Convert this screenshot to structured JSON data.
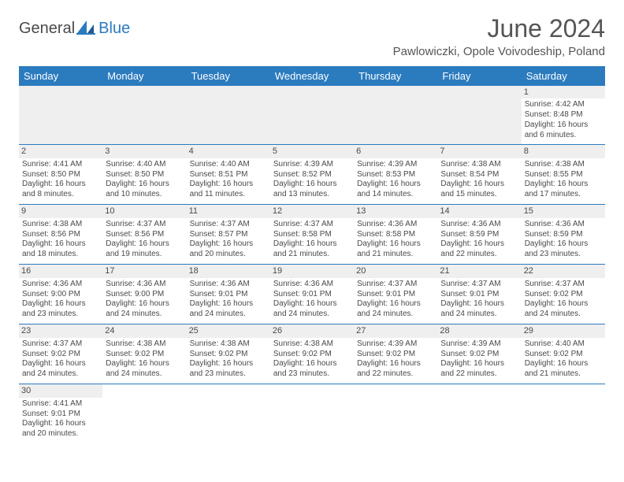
{
  "logo": {
    "part1": "General",
    "part2": "Blue"
  },
  "title": "June 2024",
  "location": "Pawlowiczki, Opole Voivodeship, Poland",
  "colors": {
    "header_bg": "#2b7bbf",
    "header_fg": "#ffffff",
    "daystrip": "#efefef",
    "text": "#4a4a4a",
    "rule": "#2b7bbf"
  },
  "weekdays": [
    "Sunday",
    "Monday",
    "Tuesday",
    "Wednesday",
    "Thursday",
    "Friday",
    "Saturday"
  ],
  "weeks": [
    [
      null,
      null,
      null,
      null,
      null,
      null,
      {
        "d": "1",
        "sr": "Sunrise: 4:42 AM",
        "ss": "Sunset: 8:48 PM",
        "dl": "Daylight: 16 hours and 6 minutes."
      }
    ],
    [
      {
        "d": "2",
        "sr": "Sunrise: 4:41 AM",
        "ss": "Sunset: 8:50 PM",
        "dl": "Daylight: 16 hours and 8 minutes."
      },
      {
        "d": "3",
        "sr": "Sunrise: 4:40 AM",
        "ss": "Sunset: 8:50 PM",
        "dl": "Daylight: 16 hours and 10 minutes."
      },
      {
        "d": "4",
        "sr": "Sunrise: 4:40 AM",
        "ss": "Sunset: 8:51 PM",
        "dl": "Daylight: 16 hours and 11 minutes."
      },
      {
        "d": "5",
        "sr": "Sunrise: 4:39 AM",
        "ss": "Sunset: 8:52 PM",
        "dl": "Daylight: 16 hours and 13 minutes."
      },
      {
        "d": "6",
        "sr": "Sunrise: 4:39 AM",
        "ss": "Sunset: 8:53 PM",
        "dl": "Daylight: 16 hours and 14 minutes."
      },
      {
        "d": "7",
        "sr": "Sunrise: 4:38 AM",
        "ss": "Sunset: 8:54 PM",
        "dl": "Daylight: 16 hours and 15 minutes."
      },
      {
        "d": "8",
        "sr": "Sunrise: 4:38 AM",
        "ss": "Sunset: 8:55 PM",
        "dl": "Daylight: 16 hours and 17 minutes."
      }
    ],
    [
      {
        "d": "9",
        "sr": "Sunrise: 4:38 AM",
        "ss": "Sunset: 8:56 PM",
        "dl": "Daylight: 16 hours and 18 minutes."
      },
      {
        "d": "10",
        "sr": "Sunrise: 4:37 AM",
        "ss": "Sunset: 8:56 PM",
        "dl": "Daylight: 16 hours and 19 minutes."
      },
      {
        "d": "11",
        "sr": "Sunrise: 4:37 AM",
        "ss": "Sunset: 8:57 PM",
        "dl": "Daylight: 16 hours and 20 minutes."
      },
      {
        "d": "12",
        "sr": "Sunrise: 4:37 AM",
        "ss": "Sunset: 8:58 PM",
        "dl": "Daylight: 16 hours and 21 minutes."
      },
      {
        "d": "13",
        "sr": "Sunrise: 4:36 AM",
        "ss": "Sunset: 8:58 PM",
        "dl": "Daylight: 16 hours and 21 minutes."
      },
      {
        "d": "14",
        "sr": "Sunrise: 4:36 AM",
        "ss": "Sunset: 8:59 PM",
        "dl": "Daylight: 16 hours and 22 minutes."
      },
      {
        "d": "15",
        "sr": "Sunrise: 4:36 AM",
        "ss": "Sunset: 8:59 PM",
        "dl": "Daylight: 16 hours and 23 minutes."
      }
    ],
    [
      {
        "d": "16",
        "sr": "Sunrise: 4:36 AM",
        "ss": "Sunset: 9:00 PM",
        "dl": "Daylight: 16 hours and 23 minutes."
      },
      {
        "d": "17",
        "sr": "Sunrise: 4:36 AM",
        "ss": "Sunset: 9:00 PM",
        "dl": "Daylight: 16 hours and 24 minutes."
      },
      {
        "d": "18",
        "sr": "Sunrise: 4:36 AM",
        "ss": "Sunset: 9:01 PM",
        "dl": "Daylight: 16 hours and 24 minutes."
      },
      {
        "d": "19",
        "sr": "Sunrise: 4:36 AM",
        "ss": "Sunset: 9:01 PM",
        "dl": "Daylight: 16 hours and 24 minutes."
      },
      {
        "d": "20",
        "sr": "Sunrise: 4:37 AM",
        "ss": "Sunset: 9:01 PM",
        "dl": "Daylight: 16 hours and 24 minutes."
      },
      {
        "d": "21",
        "sr": "Sunrise: 4:37 AM",
        "ss": "Sunset: 9:01 PM",
        "dl": "Daylight: 16 hours and 24 minutes."
      },
      {
        "d": "22",
        "sr": "Sunrise: 4:37 AM",
        "ss": "Sunset: 9:02 PM",
        "dl": "Daylight: 16 hours and 24 minutes."
      }
    ],
    [
      {
        "d": "23",
        "sr": "Sunrise: 4:37 AM",
        "ss": "Sunset: 9:02 PM",
        "dl": "Daylight: 16 hours and 24 minutes."
      },
      {
        "d": "24",
        "sr": "Sunrise: 4:38 AM",
        "ss": "Sunset: 9:02 PM",
        "dl": "Daylight: 16 hours and 24 minutes."
      },
      {
        "d": "25",
        "sr": "Sunrise: 4:38 AM",
        "ss": "Sunset: 9:02 PM",
        "dl": "Daylight: 16 hours and 23 minutes."
      },
      {
        "d": "26",
        "sr": "Sunrise: 4:38 AM",
        "ss": "Sunset: 9:02 PM",
        "dl": "Daylight: 16 hours and 23 minutes."
      },
      {
        "d": "27",
        "sr": "Sunrise: 4:39 AM",
        "ss": "Sunset: 9:02 PM",
        "dl": "Daylight: 16 hours and 22 minutes."
      },
      {
        "d": "28",
        "sr": "Sunrise: 4:39 AM",
        "ss": "Sunset: 9:02 PM",
        "dl": "Daylight: 16 hours and 22 minutes."
      },
      {
        "d": "29",
        "sr": "Sunrise: 4:40 AM",
        "ss": "Sunset: 9:02 PM",
        "dl": "Daylight: 16 hours and 21 minutes."
      }
    ],
    [
      {
        "d": "30",
        "sr": "Sunrise: 4:41 AM",
        "ss": "Sunset: 9:01 PM",
        "dl": "Daylight: 16 hours and 20 minutes."
      },
      null,
      null,
      null,
      null,
      null,
      null
    ]
  ]
}
